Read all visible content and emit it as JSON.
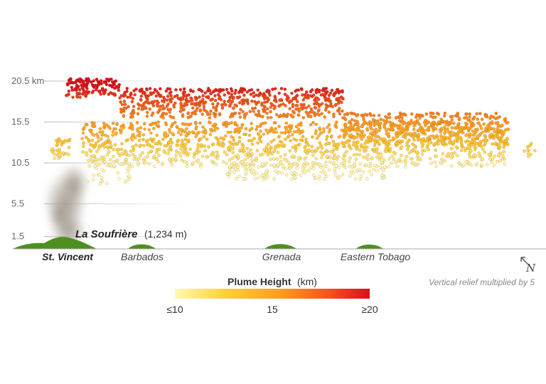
{
  "chart_data": {
    "type": "scatter",
    "ylabel_unit": "km",
    "y_ticks": [
      {
        "value": 1.5,
        "label": "1.5"
      },
      {
        "value": 5.5,
        "label": "5.5"
      },
      {
        "value": 10.5,
        "label": "10.5"
      },
      {
        "value": 15.5,
        "label": "15.5"
      },
      {
        "value": 20.5,
        "label": "20.5 km"
      }
    ],
    "ylim": [
      0,
      22
    ],
    "places": [
      {
        "name": "St. Vincent",
        "bold": true
      },
      {
        "name": "Barbados",
        "bold": false
      },
      {
        "name": "Grenada",
        "bold": false
      },
      {
        "name": "Eastern Tobago",
        "bold": false
      }
    ],
    "volcano": {
      "name": "La Soufrière",
      "elevation": "(1,234 m)"
    },
    "legend": {
      "title": "Plume Height",
      "unit": "(km)",
      "ticks": [
        "≤10",
        "15",
        "≥20"
      ],
      "min": 10,
      "max": 20,
      "colors": [
        "#fffbb0",
        "#ffd23a",
        "#ff9a1e",
        "#f4501b",
        "#dc0d1c"
      ]
    },
    "note": "Vertical relief multiplied by 5",
    "north_label": "N",
    "plume_clusters": [
      {
        "x_from": 0.1,
        "x_to": 0.2,
        "y_min": 18.5,
        "y_max": 20.8,
        "count": 140
      },
      {
        "x_from": 0.2,
        "x_to": 0.62,
        "y_min": 16.0,
        "y_max": 19.6,
        "count": 600
      },
      {
        "x_from": 0.62,
        "x_to": 0.93,
        "y_min": 12.5,
        "y_max": 16.6,
        "count": 420
      },
      {
        "x_from": 0.13,
        "x_to": 0.93,
        "y_min": 10.0,
        "y_max": 15.5,
        "count": 1200
      },
      {
        "x_from": 0.4,
        "x_to": 0.7,
        "y_min": 8.5,
        "y_max": 10.5,
        "count": 160
      },
      {
        "x_from": 0.14,
        "x_to": 0.22,
        "y_min": 7.8,
        "y_max": 11.0,
        "count": 40
      },
      {
        "x_from": 0.07,
        "x_to": 0.11,
        "y_min": 11.0,
        "y_max": 13.5,
        "count": 35
      },
      {
        "x_from": 0.955,
        "x_to": 0.98,
        "y_min": 11.0,
        "y_max": 13.0,
        "count": 10
      }
    ]
  }
}
